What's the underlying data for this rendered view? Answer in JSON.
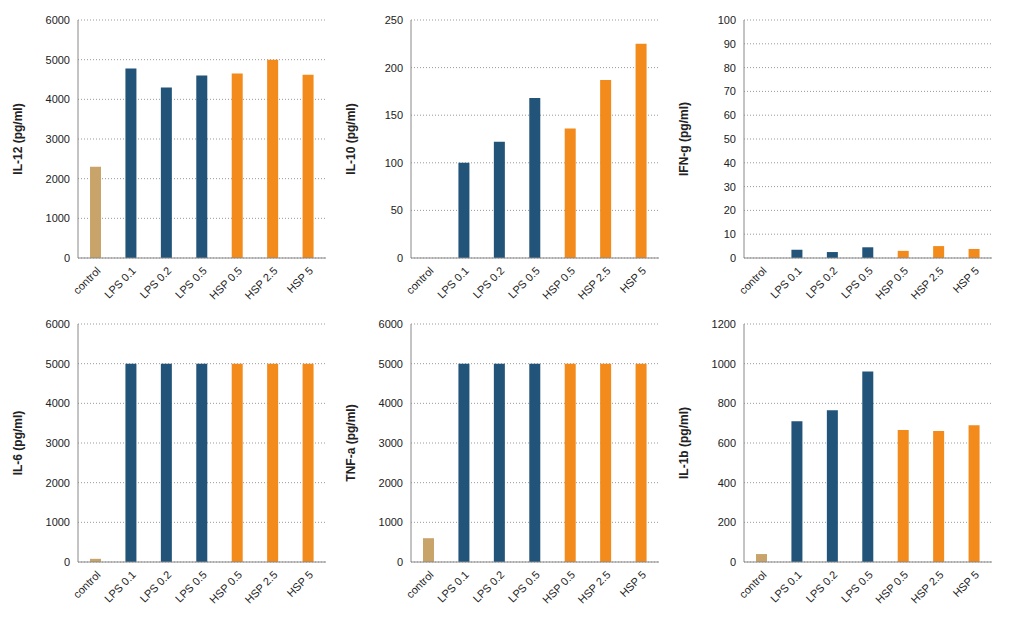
{
  "chart_data": [
    {
      "type": "bar",
      "y_label": "IL-12 (pg/ml)",
      "categories": [
        "control",
        "LPS 0.1",
        "LPS 0.2",
        "LPS 0.5",
        "HSP 0.5",
        "HSP 2.5",
        "HSP 5"
      ],
      "values": [
        2300,
        4780,
        4300,
        4600,
        4650,
        5000,
        4620
      ],
      "colors": [
        "#c8a36a",
        "#225378",
        "#225378",
        "#225378",
        "#f28a1c",
        "#f28a1c",
        "#f28a1c"
      ],
      "ylim": [
        0,
        6000
      ],
      "yticks": [
        0,
        1000,
        2000,
        3000,
        4000,
        5000,
        6000
      ],
      "grid": true
    },
    {
      "type": "bar",
      "y_label": "IL-10 (pg/ml)",
      "categories": [
        "control",
        "LPS 0.1",
        "LPS 0.2",
        "LPS 0.5",
        "HSP 0.5",
        "HSP 2.5",
        "HSP 5"
      ],
      "values": [
        0,
        100,
        122,
        168,
        136,
        187,
        225
      ],
      "colors": [
        "#c8a36a",
        "#225378",
        "#225378",
        "#225378",
        "#f28a1c",
        "#f28a1c",
        "#f28a1c"
      ],
      "ylim": [
        0,
        250
      ],
      "yticks": [
        0,
        50,
        100,
        150,
        200,
        250
      ],
      "grid": true
    },
    {
      "type": "bar",
      "y_label": "IFN-g (pg/ml)",
      "categories": [
        "control",
        "LPS 0.1",
        "LPS 0.2",
        "LPS 0.5",
        "HSP 0.5",
        "HSP 2.5",
        "HSP 5"
      ],
      "values": [
        0,
        3.5,
        2.5,
        4.5,
        3,
        5,
        3.8
      ],
      "colors": [
        "#c8a36a",
        "#225378",
        "#225378",
        "#225378",
        "#f28a1c",
        "#f28a1c",
        "#f28a1c"
      ],
      "ylim": [
        0,
        100
      ],
      "yticks": [
        0,
        10,
        20,
        30,
        40,
        50,
        60,
        70,
        80,
        90,
        100
      ],
      "grid": true
    },
    {
      "type": "bar",
      "y_label": "IL-6 (pg/ml)",
      "categories": [
        "control",
        "LPS 0.1",
        "LPS 0.2",
        "LPS 0.5",
        "HSP 0.5",
        "HSP 2.5",
        "HSP 5"
      ],
      "values": [
        80,
        5000,
        5000,
        5000,
        5000,
        5000,
        5000
      ],
      "colors": [
        "#c8a36a",
        "#225378",
        "#225378",
        "#225378",
        "#f28a1c",
        "#f28a1c",
        "#f28a1c"
      ],
      "ylim": [
        0,
        6000
      ],
      "yticks": [
        0,
        1000,
        2000,
        3000,
        4000,
        5000,
        6000
      ],
      "grid": true
    },
    {
      "type": "bar",
      "y_label": "TNF-a (pg/ml)",
      "categories": [
        "control",
        "LPS 0.1",
        "LPS 0.2",
        "LPS 0.5",
        "HSP 0.5",
        "HSP 2.5",
        "HSP 5"
      ],
      "values": [
        600,
        5000,
        5000,
        5000,
        5000,
        5000,
        5000
      ],
      "colors": [
        "#c8a36a",
        "#225378",
        "#225378",
        "#225378",
        "#f28a1c",
        "#f28a1c",
        "#f28a1c"
      ],
      "ylim": [
        0,
        6000
      ],
      "yticks": [
        0,
        1000,
        2000,
        3000,
        4000,
        5000,
        6000
      ],
      "grid": true
    },
    {
      "type": "bar",
      "y_label": "IL-1b (pg/ml)",
      "categories": [
        "control",
        "LPS 0.1",
        "LPS 0.2",
        "LPS 0.5",
        "HSP 0.5",
        "HSP 2.5",
        "HSP 5"
      ],
      "values": [
        40,
        710,
        765,
        960,
        665,
        660,
        690
      ],
      "colors": [
        "#c8a36a",
        "#225378",
        "#225378",
        "#225378",
        "#f28a1c",
        "#f28a1c",
        "#f28a1c"
      ],
      "ylim": [
        0,
        1200
      ],
      "yticks": [
        0,
        200,
        400,
        600,
        800,
        1000,
        1200
      ],
      "grid": true
    }
  ]
}
